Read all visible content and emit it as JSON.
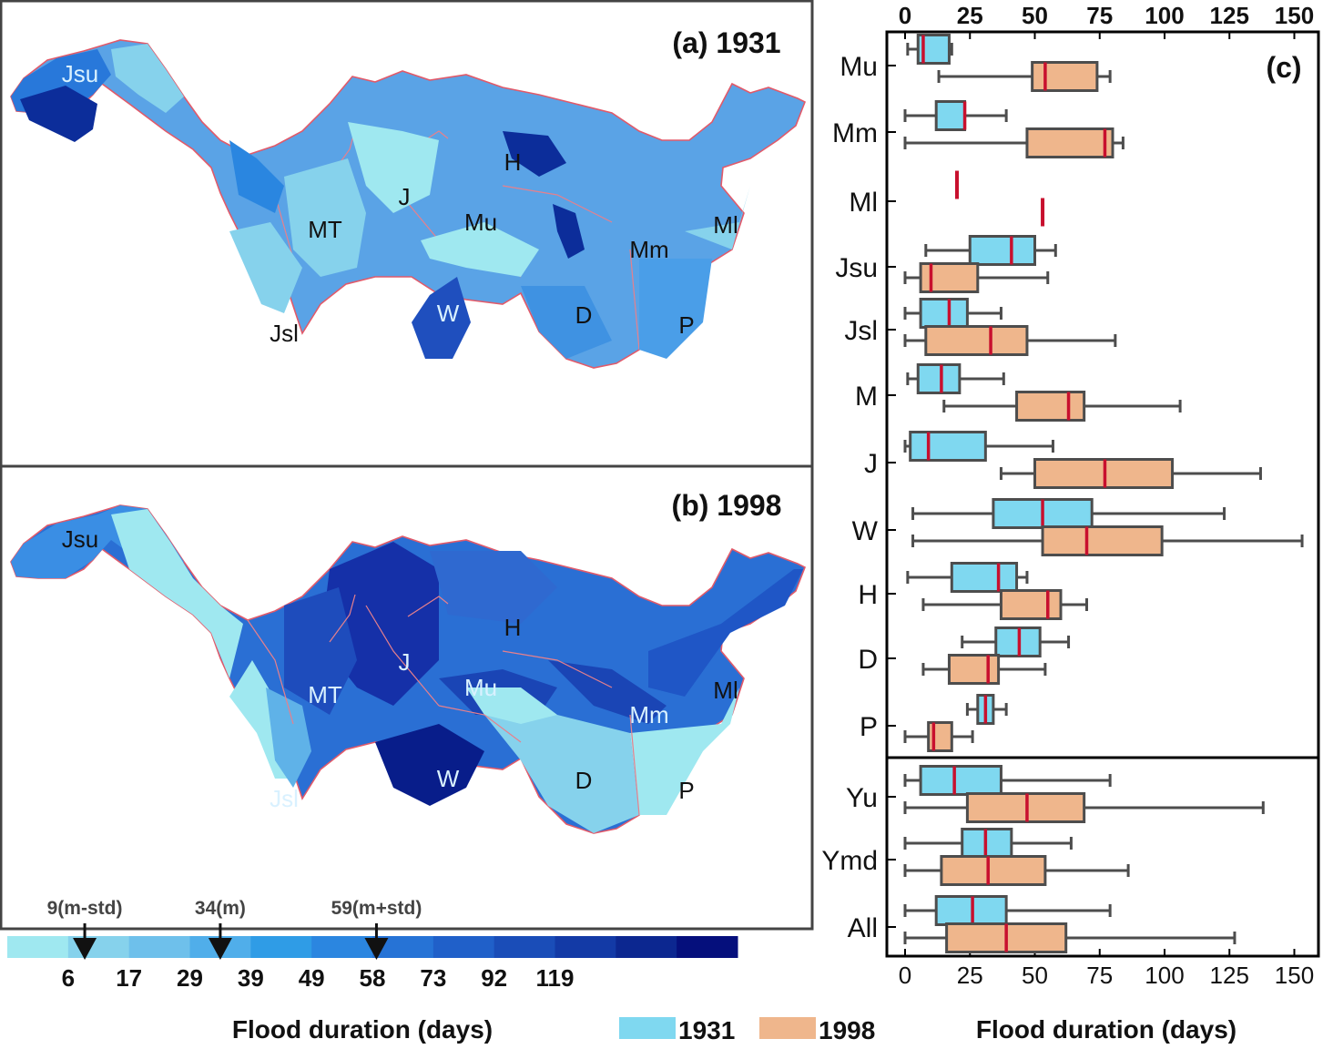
{
  "panel_a": {
    "title": "(a) 1931",
    "labels": [
      {
        "name": "Jsu",
        "light": true
      },
      {
        "name": "H",
        "light": false
      },
      {
        "name": "J",
        "light": false
      },
      {
        "name": "MT",
        "light": false
      },
      {
        "name": "Mu",
        "light": false
      },
      {
        "name": "Ml",
        "light": false
      },
      {
        "name": "Mm",
        "light": false
      },
      {
        "name": "W",
        "light": true
      },
      {
        "name": "D",
        "light": false
      },
      {
        "name": "P",
        "light": false
      },
      {
        "name": "Jsl",
        "light": false
      }
    ]
  },
  "panel_b": {
    "title": "(b) 1998",
    "labels": [
      {
        "name": "Jsu",
        "light": false
      },
      {
        "name": "H",
        "light": false
      },
      {
        "name": "J",
        "light": true
      },
      {
        "name": "MT",
        "light": true
      },
      {
        "name": "Mu",
        "light": true
      },
      {
        "name": "Ml",
        "light": false
      },
      {
        "name": "Mm",
        "light": true
      },
      {
        "name": "W",
        "light": true
      },
      {
        "name": "D",
        "light": false
      },
      {
        "name": "P",
        "light": false
      },
      {
        "name": "Jsl",
        "light": true
      }
    ]
  },
  "colorbar": {
    "colors": [
      "#9fe8f0",
      "#86d2ec",
      "#6ec0eb",
      "#50aeea",
      "#2f9ce6",
      "#2b86e0",
      "#2673d6",
      "#2060c9",
      "#1a4db8",
      "#133aa6",
      "#0c2790",
      "#050f7c"
    ],
    "tick_labels": [
      "6",
      "17",
      "29",
      "39",
      "49",
      "58",
      "73",
      "92",
      "119"
    ],
    "markers": [
      {
        "value": 9,
        "label": "9(m-std)"
      },
      {
        "value": 34,
        "label": "34(m)"
      },
      {
        "value": 59,
        "label": "59(m+std)"
      }
    ],
    "title": "Flood duration (days)"
  },
  "chart_data": {
    "type": "boxplot",
    "title": "(c)",
    "xlabel": "Flood duration (days)",
    "xlim": [
      -8,
      158
    ],
    "xticks": [
      0,
      25,
      50,
      75,
      100,
      125,
      150
    ],
    "xtick_labels": [
      "0",
      "25",
      "50",
      "75",
      "100",
      "125",
      "150"
    ],
    "colors": {
      "1931": "#7fd8f0",
      "1998": "#efb68c",
      "median": "#c8102e",
      "edge": "#4d4d4d"
    },
    "legend": [
      {
        "name": "1931",
        "color": "#7fd8f0"
      },
      {
        "name": "1998",
        "color": "#efb68c"
      }
    ],
    "categories": [
      "Mu",
      "Mm",
      "Ml",
      "Jsu",
      "Jsl",
      "M",
      "J",
      "W",
      "H",
      "D",
      "P",
      "Yu",
      "Ymd",
      "All"
    ],
    "series": [
      {
        "name": "1931",
        "boxes": [
          {
            "cat": "Mu",
            "min": 1,
            "q1": 5,
            "median": 7,
            "q3": 17,
            "max": 18
          },
          {
            "cat": "Mm",
            "min": 0,
            "q1": 12,
            "median": 23,
            "q3": 23,
            "max": 39
          },
          {
            "cat": "Ml",
            "min": 20,
            "q1": 20,
            "median": 20,
            "q3": 20,
            "max": 20
          },
          {
            "cat": "Jsu",
            "min": 8,
            "q1": 25,
            "median": 41,
            "q3": 50,
            "max": 58
          },
          {
            "cat": "Jsl",
            "min": 0,
            "q1": 6,
            "median": 17,
            "q3": 24,
            "max": 37
          },
          {
            "cat": "M",
            "min": 1,
            "q1": 5,
            "median": 14,
            "q3": 21,
            "max": 38
          },
          {
            "cat": "J",
            "min": 0,
            "q1": 2,
            "median": 9,
            "q3": 31,
            "max": 57
          },
          {
            "cat": "W",
            "min": 3,
            "q1": 34,
            "median": 53,
            "q3": 72,
            "max": 123
          },
          {
            "cat": "H",
            "min": 1,
            "q1": 18,
            "median": 36,
            "q3": 43,
            "max": 47
          },
          {
            "cat": "D",
            "min": 22,
            "q1": 35,
            "median": 44,
            "q3": 52,
            "max": 63
          },
          {
            "cat": "P",
            "min": 24,
            "q1": 28,
            "median": 31,
            "q3": 34,
            "max": 39
          },
          {
            "cat": "Yu",
            "min": 0,
            "q1": 6,
            "median": 19,
            "q3": 37,
            "max": 79
          },
          {
            "cat": "Ymd",
            "min": 0,
            "q1": 22,
            "median": 31,
            "q3": 41,
            "max": 64
          },
          {
            "cat": "All",
            "min": 0,
            "q1": 12,
            "median": 26,
            "q3": 39,
            "max": 79
          }
        ]
      },
      {
        "name": "1998",
        "boxes": [
          {
            "cat": "Mu",
            "min": 13,
            "q1": 49,
            "median": 54,
            "q3": 74,
            "max": 79
          },
          {
            "cat": "Mm",
            "min": 0,
            "q1": 47,
            "median": 77,
            "q3": 80,
            "max": 84
          },
          {
            "cat": "Ml",
            "min": 53,
            "q1": 53,
            "median": 53,
            "q3": 53,
            "max": 53
          },
          {
            "cat": "Jsu",
            "min": 0,
            "q1": 6,
            "median": 10,
            "q3": 28,
            "max": 55
          },
          {
            "cat": "Jsl",
            "min": 0,
            "q1": 8,
            "median": 33,
            "q3": 47,
            "max": 81
          },
          {
            "cat": "M",
            "min": 15,
            "q1": 43,
            "median": 63,
            "q3": 69,
            "max": 106
          },
          {
            "cat": "J",
            "min": 37,
            "q1": 50,
            "median": 77,
            "q3": 103,
            "max": 137
          },
          {
            "cat": "W",
            "min": 3,
            "q1": 53,
            "median": 70,
            "q3": 99,
            "max": 153
          },
          {
            "cat": "H",
            "min": 7,
            "q1": 37,
            "median": 55,
            "q3": 60,
            "max": 70
          },
          {
            "cat": "D",
            "min": 7,
            "q1": 17,
            "median": 32,
            "q3": 36,
            "max": 54
          },
          {
            "cat": "P",
            "min": 0,
            "q1": 9,
            "median": 11,
            "q3": 18,
            "max": 26
          },
          {
            "cat": "Yu",
            "min": 0,
            "q1": 24,
            "median": 47,
            "q3": 69,
            "max": 138
          },
          {
            "cat": "Ymd",
            "min": 0,
            "q1": 14,
            "median": 32,
            "q3": 54,
            "max": 86
          },
          {
            "cat": "All",
            "min": 0,
            "q1": 16,
            "median": 39,
            "q3": 62,
            "max": 127
          }
        ]
      }
    ]
  }
}
